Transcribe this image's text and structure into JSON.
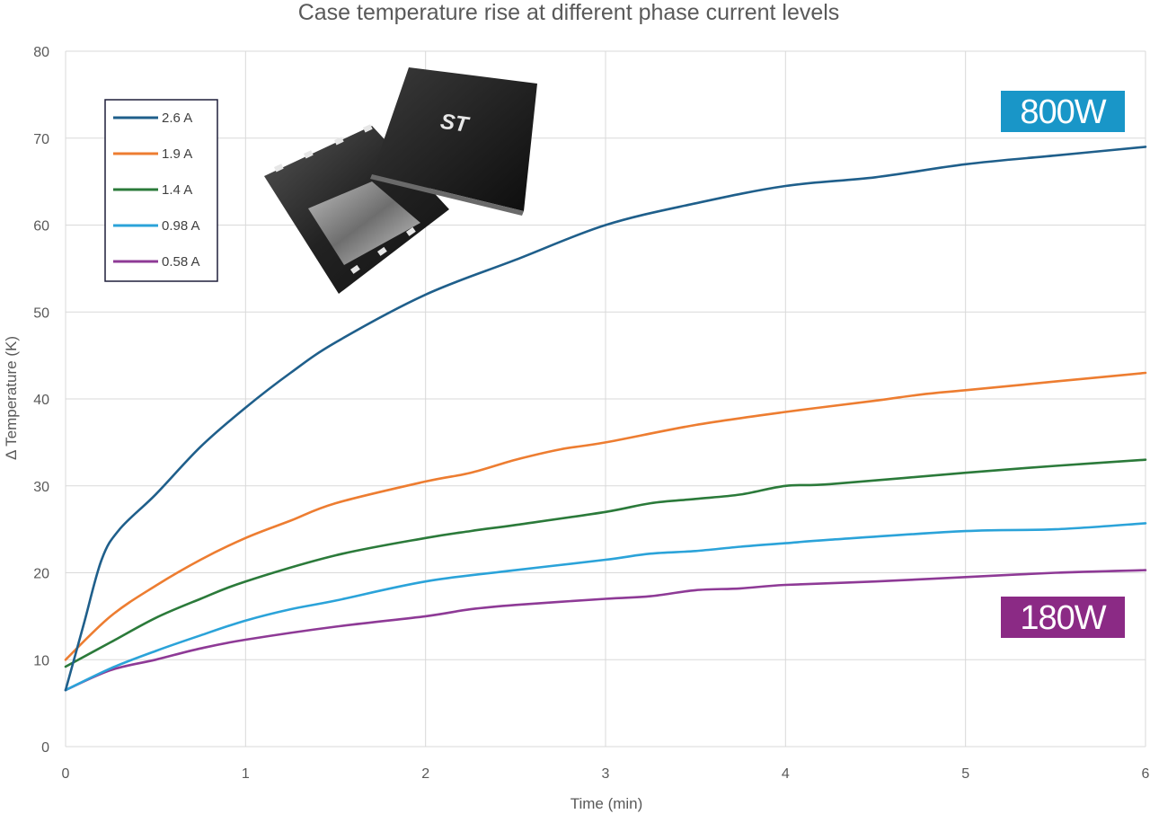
{
  "chart_data": {
    "type": "line",
    "title": "Case temperature rise at different phase current levels",
    "xlabel": "Time (min)",
    "ylabel": "Δ Temperature (K)",
    "xlim": [
      0,
      6
    ],
    "ylim": [
      0,
      80
    ],
    "xticks": [
      0,
      1,
      2,
      3,
      4,
      5,
      6
    ],
    "yticks": [
      0,
      10,
      20,
      30,
      40,
      50,
      60,
      70,
      80
    ],
    "grid": true,
    "legend_position": "top-left",
    "series": [
      {
        "name": "2.6 A",
        "color": "#1f5f8b",
        "x": [
          0,
          0.1,
          0.2,
          0.3,
          0.5,
          0.75,
          1,
          1.25,
          1.5,
          2,
          2.5,
          3,
          3.5,
          4,
          4.5,
          5,
          5.5,
          6
        ],
        "y": [
          6.5,
          14,
          21.5,
          25,
          29,
          34.5,
          39,
          43,
          46.5,
          52,
          56,
          60,
          62.5,
          64.5,
          65.5,
          67,
          68,
          69
        ]
      },
      {
        "name": "1.9 A",
        "color": "#ed7d31",
        "x": [
          0,
          0.25,
          0.5,
          0.75,
          1,
          1.25,
          1.5,
          2,
          2.25,
          2.5,
          2.75,
          3,
          3.5,
          4,
          4.5,
          4.75,
          5,
          5.5,
          6
        ],
        "y": [
          10,
          15,
          18.5,
          21.5,
          24,
          26,
          28,
          30.5,
          31.5,
          33,
          34.2,
          35,
          37,
          38.5,
          39.8,
          40.5,
          41,
          42,
          43
        ]
      },
      {
        "name": "1.4 A",
        "color": "#2b7a3a",
        "x": [
          0,
          0.25,
          0.5,
          0.75,
          1,
          1.5,
          2,
          2.25,
          2.5,
          3,
          3.25,
          3.5,
          3.75,
          4,
          4.25,
          5,
          5.5,
          6
        ],
        "y": [
          9.2,
          12,
          14.8,
          17,
          19,
          22,
          24,
          24.8,
          25.5,
          27,
          28,
          28.5,
          29,
          30,
          30.2,
          31.5,
          32.3,
          33
        ]
      },
      {
        "name": "0.98 A",
        "color": "#2ba3d9",
        "x": [
          0,
          0.25,
          0.5,
          0.75,
          1,
          1.25,
          1.5,
          2,
          2.5,
          3,
          3.25,
          3.5,
          3.75,
          4,
          4.25,
          5,
          5.5,
          6
        ],
        "y": [
          6.5,
          9,
          11,
          12.8,
          14.5,
          15.8,
          16.8,
          19,
          20.3,
          21.5,
          22.2,
          22.5,
          23,
          23.4,
          23.8,
          24.8,
          25,
          25.7
        ]
      },
      {
        "name": "0.58 A",
        "color": "#8e3a96",
        "x": [
          0,
          0.25,
          0.5,
          0.75,
          1,
          1.5,
          2,
          2.25,
          2.5,
          3,
          3.25,
          3.5,
          3.75,
          4,
          4.5,
          5,
          5.5,
          6
        ],
        "y": [
          6.5,
          8.8,
          10,
          11.3,
          12.3,
          13.8,
          15,
          15.8,
          16.3,
          17,
          17.3,
          18,
          18.2,
          18.6,
          19,
          19.5,
          20,
          20.3
        ]
      }
    ],
    "annotations": [
      {
        "text": "800W",
        "color": "#1996c8"
      },
      {
        "text": "180W",
        "color": "#8b2a85"
      }
    ]
  }
}
